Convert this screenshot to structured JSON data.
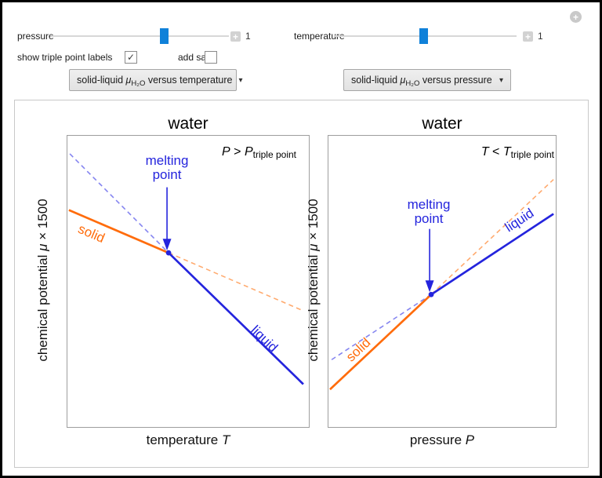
{
  "icons": {
    "circle_plus": "+",
    "expand_plus": "+",
    "dropdown_arrow": "▾",
    "checkmark": "✓"
  },
  "controls": {
    "sliders": [
      {
        "label": "pressure",
        "value": "1"
      },
      {
        "label": "temperature",
        "value": "1"
      }
    ],
    "checkboxes": [
      {
        "label": "show triple point labels",
        "checked": true,
        "glyph": "✓"
      },
      {
        "label": "add salt",
        "checked": false,
        "glyph": ""
      }
    ],
    "dropdowns": [
      {
        "prefix": "solid-liquid ",
        "mu": "μ",
        "sub": "H₂O",
        "suffix": " versus temperature"
      },
      {
        "prefix": "solid-liquid ",
        "mu": "μ",
        "sub": "H₂O",
        "suffix": " versus pressure"
      }
    ]
  },
  "plots": [
    {
      "title": "water",
      "condition": {
        "lhs": "P",
        "op": " > ",
        "rhs": "P",
        "sub": "triple point"
      },
      "xlabel": {
        "text": "temperature ",
        "var": "T"
      },
      "ylabel": {
        "text": "chemical potential ",
        "var": "μ",
        "suffix": " × 1500"
      },
      "solid_label": "solid",
      "liquid_label": "liquid",
      "melting_label": "melting point"
    },
    {
      "title": "water",
      "condition": {
        "lhs": "T",
        "op": " < ",
        "rhs": "T",
        "sub": "triple point"
      },
      "xlabel": {
        "text": "pressure ",
        "var": "P"
      },
      "ylabel": {
        "text": "chemical potential ",
        "var": "μ",
        "suffix": " × 1500"
      },
      "solid_label": "solid",
      "liquid_label": "liquid",
      "melting_label": "melting point"
    }
  ],
  "chart_data": [
    {
      "type": "line",
      "title": "water",
      "xlabel": "temperature T",
      "ylabel": "chemical potential μ × 1500",
      "annotation": "P > P_triple point",
      "axes": "qualitative, no ticks",
      "legend": "inline rotated labels",
      "series": [
        {
          "name": "liquid metastable",
          "style": "dashed",
          "color": "#8585f0",
          "x": [
            0.01,
            0.419
          ],
          "y": [
            0.938,
            0.598
          ]
        },
        {
          "name": "solid metastable",
          "style": "dashed",
          "color": "#ffaa6e",
          "x": [
            0.419,
            0.977
          ],
          "y": [
            0.598,
            0.399
          ]
        },
        {
          "name": "solid stable",
          "style": "solid",
          "color": "#ff6c0c",
          "x": [
            0.006,
            0.419
          ],
          "y": [
            0.745,
            0.598
          ]
        },
        {
          "name": "liquid stable",
          "style": "solid",
          "color": "#2424dd",
          "x": [
            0.419,
            0.977
          ],
          "y": [
            0.598,
            0.147
          ]
        }
      ],
      "melting_point": {
        "x": 0.419,
        "y": 0.598,
        "label": "melting point",
        "color": "#2424dd"
      }
    },
    {
      "type": "line",
      "title": "water",
      "xlabel": "pressure P",
      "ylabel": "chemical potential μ × 1500",
      "annotation": "T < T_triple point",
      "axes": "qualitative, no ticks",
      "legend": "inline rotated labels",
      "series": [
        {
          "name": "liquid metastable",
          "style": "dashed",
          "color": "#8585f0",
          "x": [
            0.014,
            0.452
          ],
          "y": [
            0.231,
            0.455
          ]
        },
        {
          "name": "solid metastable",
          "style": "dashed",
          "color": "#ffaa6e",
          "x": [
            0.452,
            0.99
          ],
          "y": [
            0.455,
            0.85
          ]
        },
        {
          "name": "solid stable",
          "style": "solid",
          "color": "#ff6c0c",
          "x": [
            0.007,
            0.452
          ],
          "y": [
            0.129,
            0.455
          ]
        },
        {
          "name": "liquid stable",
          "style": "solid",
          "color": "#2424dd",
          "x": [
            0.452,
            0.99
          ],
          "y": [
            0.455,
            0.732
          ]
        }
      ],
      "melting_point": {
        "x": 0.452,
        "y": 0.455,
        "label": "melting point",
        "color": "#2424dd"
      }
    }
  ]
}
